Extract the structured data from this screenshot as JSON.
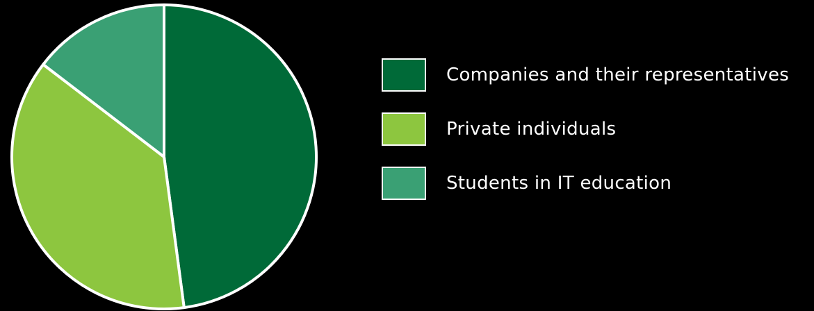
{
  "chart_data": {
    "type": "pie",
    "categories": [
      "Companies and their representatives",
      "Private individuals",
      "Students in IT education"
    ],
    "values": [
      47.9,
      37.5,
      14.6
    ],
    "colors": [
      "#006a38",
      "#8dc63f",
      "#3aa074"
    ],
    "legend_position": "right",
    "start_angle_deg": 0,
    "direction": "clockwise"
  },
  "theme": {
    "background": "#000000",
    "outline": "#ffffff",
    "text": "#ffffff"
  }
}
